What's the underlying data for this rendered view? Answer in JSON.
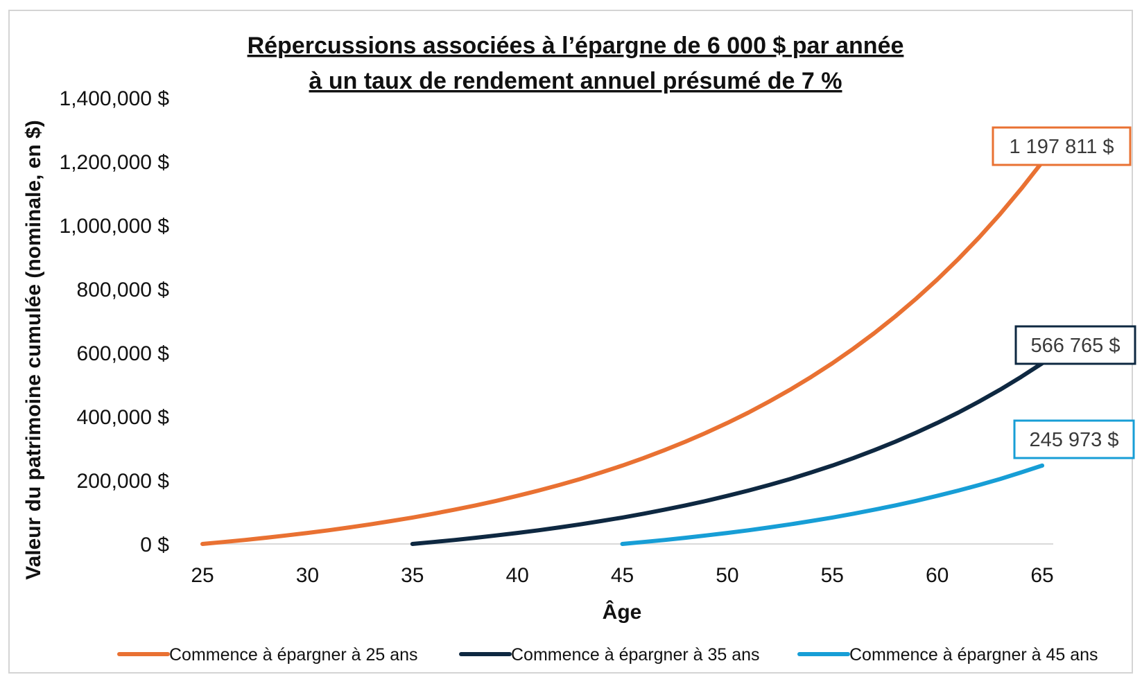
{
  "chart_data": {
    "type": "line",
    "title_line1": "Répercussions associées à l’épargne de 6 000 $ par année",
    "title_line2": "à un taux de rendement annuel présumé de 7 %",
    "xlabel": "Âge",
    "ylabel": "Valeur du patrimoine cumulée (nominale, en $)",
    "xlim": [
      25,
      65
    ],
    "ylim": [
      0,
      1400000
    ],
    "x_ticks": [
      "25",
      "30",
      "35",
      "40",
      "45",
      "50",
      "55",
      "60",
      "65"
    ],
    "y_ticks": [
      "0 $",
      "200,000 $",
      "400,000 $",
      "600,000 $",
      "800,000 $",
      "1,000,000 $",
      "1,200,000 $",
      "1,400,000 $"
    ],
    "annual_saving": 6000,
    "rate": 0.07,
    "series": [
      {
        "name": "Commence à épargner à 25 ans",
        "start_age": 25,
        "end_age": 65,
        "color": "#E97132",
        "end_label": "1 197 811 $",
        "end_value": 1197811
      },
      {
        "name": "Commence à épargner à 35 ans",
        "start_age": 35,
        "end_age": 65,
        "color": "#0E2841",
        "end_label": "566 765 $",
        "end_value": 566765
      },
      {
        "name": "Commence à épargner à 45 ans",
        "start_age": 45,
        "end_age": 65,
        "color": "#179ED6",
        "end_label": "245 973 $",
        "end_value": 245973
      }
    ],
    "legend_position": "bottom",
    "grid": false
  }
}
